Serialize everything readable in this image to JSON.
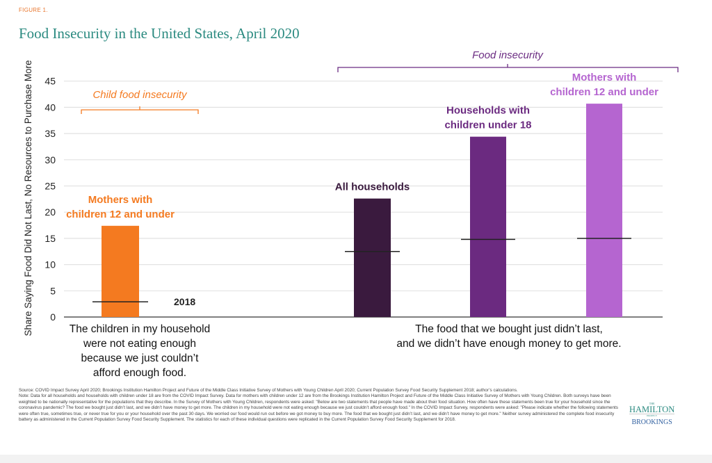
{
  "figure_label": "FIGURE 1.",
  "title": "Food Insecurity in the United States, April 2020",
  "chart_data": {
    "type": "bar",
    "ylabel": "Share Saying Food Did Not Last, No Resources to Purchase More",
    "ylim": [
      0,
      45
    ],
    "yticks": [
      0,
      5,
      10,
      15,
      20,
      25,
      30,
      35,
      40,
      45
    ],
    "grid": true,
    "groups": [
      {
        "bracket_label": "Child food insecurity",
        "color": "#f47a20",
        "category_label": [
          "The children in my household",
          "were not eating enough",
          "because we just couldn’t",
          "afford enough food."
        ]
      },
      {
        "bracket_label": "Food insecurity",
        "color": "#6b2c82",
        "category_label": [
          "The food that we bought just didn’t last,",
          "and we didn’t have enough money to get more."
        ]
      }
    ],
    "bars": [
      {
        "label": [
          "Mothers with",
          "children 12 and under"
        ],
        "value": 17.4,
        "value_2018": 2.9,
        "color": "#f47a20",
        "group": 0
      },
      {
        "label": [
          "All households"
        ],
        "value": 22.6,
        "value_2018": 12.5,
        "color": "#3a1a3e",
        "group": 1
      },
      {
        "label": [
          "Households with",
          "children under 18"
        ],
        "value": 34.4,
        "value_2018": 14.8,
        "color": "#6b2a80",
        "group": 1
      },
      {
        "label": [
          "Mothers with",
          "children 12 and under"
        ],
        "value": 40.7,
        "value_2018": 15.0,
        "color": "#b565d0",
        "group": 1
      }
    ],
    "reference_label": "2018"
  },
  "notes": {
    "source": "Source: COVID Impact Survey April 2020; Brookings Institution Hamilton Project and Future of the Middle Class Initiative Survey of Mothers with Young Children April 2020; Current Population Survey Food Security Supplement 2018; author’s calculations.",
    "note": "Note: Data for all households and households with children under 18 are from the COVID Impact Survey. Data for mothers with children under 12 are from the Brookings Institution Hamilton Project and Future of the Middle Class Initiative Survey of Mothers with Young Children. Both surveys have been weighted to be nationally representative for the populations that they describe. In the Survey of Mothers with Young Children, respondents were asked: \"Below are two statements that people have made about their food situation. How often have these statements been true for your household since the coronavirus pandemic? The food we bought just didn’t last, and we didn’t have money to get more. The children in my household were not eating enough because we just couldn’t afford enough food.\" In the COVID Impact Survey, respondents were asked: \"Please indicate whether the following statements were often true, sometimes true, or never true for you or your household over the past 30 days. We worried our food would run out before we got money to buy more. The food that we bought just didn’t last, and we didn’t have money to get more.\" Neither survey administered the complete food insecurity battery as administered in the Current Population Survey Food Security Supplement. The statistics for each of these individual questions were replicated in the Current Population Survey Food Security Supplement for 2018."
  },
  "logo": {
    "the": "THE",
    "hamilton": "HAMILTON",
    "project": "PROJECT",
    "brookings": "BROOKINGS"
  }
}
